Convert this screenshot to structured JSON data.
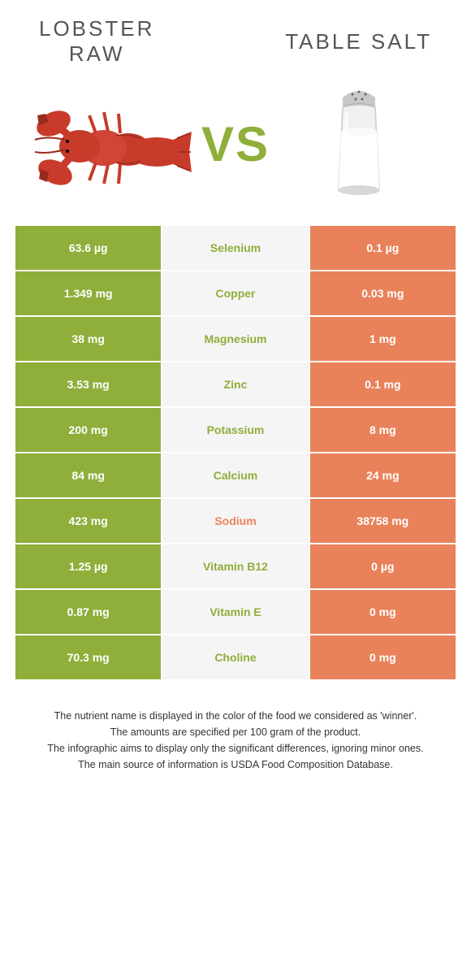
{
  "header": {
    "left_title": "LOBSTER\nRAW",
    "right_title": "TABLE SALT",
    "vs_label": "VS"
  },
  "colors": {
    "left_bg": "#8fae3a",
    "right_bg": "#e9825a",
    "mid_bg": "#f5f5f5",
    "left_text": "#ffffff",
    "right_text": "#ffffff",
    "winner_left": "#8fae3a",
    "winner_right": "#e9825a",
    "lobster_body": "#c83a2a",
    "lobster_dark": "#9a2a1e",
    "salt_cap": "#c0c0c0",
    "salt_glass": "#e8e8e8",
    "salt_content": "#ffffff"
  },
  "rows": [
    {
      "nutrient": "Selenium",
      "left": "63.6 µg",
      "right": "0.1 µg",
      "winner": "left"
    },
    {
      "nutrient": "Copper",
      "left": "1.349 mg",
      "right": "0.03 mg",
      "winner": "left"
    },
    {
      "nutrient": "Magnesium",
      "left": "38 mg",
      "right": "1 mg",
      "winner": "left"
    },
    {
      "nutrient": "Zinc",
      "left": "3.53 mg",
      "right": "0.1 mg",
      "winner": "left"
    },
    {
      "nutrient": "Potassium",
      "left": "200 mg",
      "right": "8 mg",
      "winner": "left"
    },
    {
      "nutrient": "Calcium",
      "left": "84 mg",
      "right": "24 mg",
      "winner": "left"
    },
    {
      "nutrient": "Sodium",
      "left": "423 mg",
      "right": "38758 mg",
      "winner": "right"
    },
    {
      "nutrient": "Vitamin B12",
      "left": "1.25 µg",
      "right": "0 µg",
      "winner": "left"
    },
    {
      "nutrient": "Vitamin E",
      "left": "0.87 mg",
      "right": "0 mg",
      "winner": "left"
    },
    {
      "nutrient": "Choline",
      "left": "70.3 mg",
      "right": "0 mg",
      "winner": "left"
    }
  ],
  "footnotes": [
    "The nutrient name is displayed in the color of the food we considered as 'winner'.",
    "The amounts are specified per 100 gram of the product.",
    "The infographic aims to display only the significant differences, ignoring minor ones.",
    "The main source of information is USDA Food Composition Database."
  ]
}
